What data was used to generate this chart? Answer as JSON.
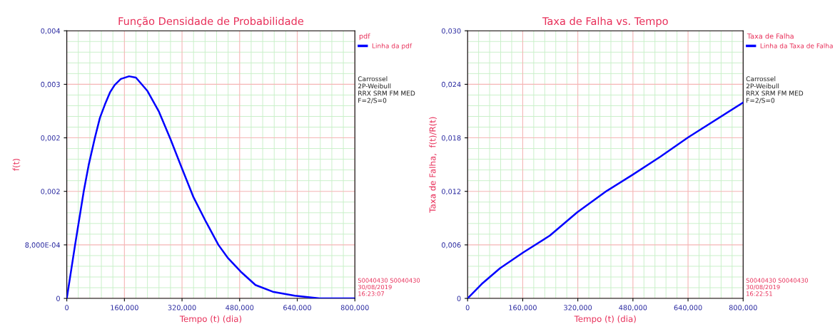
{
  "chart_data": [
    {
      "type": "line",
      "title": "Função Densidade de Probabilidade",
      "xlabel": "Tempo (t) (dia)",
      "ylabel": "f(t)",
      "legend_title": "pdf",
      "legend": "right",
      "grid": true,
      "marker": "none",
      "line_style": "solid",
      "xlim": [
        0,
        800
      ],
      "xticks": [
        {
          "value": 0,
          "label": "0"
        },
        {
          "value": 160,
          "label": "160,000"
        },
        {
          "value": 320,
          "label": "320,000"
        },
        {
          "value": 480,
          "label": "480,000"
        },
        {
          "value": 640,
          "label": "640,000"
        },
        {
          "value": 800,
          "label": "800,000"
        }
      ],
      "ylim": [
        0,
        0.004
      ],
      "yticks": [
        {
          "value": 0,
          "label": "0"
        },
        {
          "value": 0.0008,
          "label": "8,000E-04"
        },
        {
          "value": 0.0016,
          "label": "0,002"
        },
        {
          "value": 0.0024,
          "label": "0,002"
        },
        {
          "value": 0.0032,
          "label": "0,003"
        },
        {
          "value": 0.004,
          "label": "0,004"
        }
      ],
      "x": [
        0,
        23,
        47,
        61,
        78,
        92,
        106,
        120,
        133,
        150,
        173,
        192,
        224,
        256,
        288,
        320,
        352,
        387,
        421,
        448,
        483,
        524,
        572,
        633,
        702,
        800
      ],
      "series": [
        {
          "name": "Linha da pdf",
          "color": "#0000ff",
          "values": [
            0,
            0.0008,
            0.0016,
            0.002,
            0.0024,
            0.0027,
            0.0029,
            0.00308,
            0.00319,
            0.00328,
            0.00332,
            0.0033,
            0.0031,
            0.00279,
            0.00238,
            0.00194,
            0.00151,
            0.00114,
            0.0008,
            0.0006,
            0.0004,
            0.0002,
            0.0001,
            4e-05,
            0,
            0
          ]
        }
      ],
      "annotations": [
        "Carrossel\n2P-Weibull\nRRX SRM FM MED\nF=2/S=0",
        "S0040430 S0040430\n30/08/2019\n16:23:07"
      ]
    },
    {
      "type": "line",
      "title": "Taxa de Falha vs. Tempo",
      "xlabel": "Tempo (t) (dia)",
      "ylabel": "Taxa de Falha,  f(t)/R(t)",
      "legend_title": "Taxa de Falha",
      "legend": "right",
      "grid": true,
      "marker": "none",
      "line_style": "solid",
      "xlim": [
        0,
        800
      ],
      "xticks": [
        {
          "value": 0,
          "label": "0"
        },
        {
          "value": 160,
          "label": "160,000"
        },
        {
          "value": 320,
          "label": "320,000"
        },
        {
          "value": 480,
          "label": "480,000"
        },
        {
          "value": 640,
          "label": "640,000"
        },
        {
          "value": 800,
          "label": "800,000"
        }
      ],
      "ylim": [
        0,
        0.03
      ],
      "yticks": [
        {
          "value": 0,
          "label": "0"
        },
        {
          "value": 0.006,
          "label": "0,006"
        },
        {
          "value": 0.012,
          "label": "0,012"
        },
        {
          "value": 0.018,
          "label": "0,018"
        },
        {
          "value": 0.024,
          "label": "0,024"
        },
        {
          "value": 0.03,
          "label": "0,030"
        }
      ],
      "x": [
        0,
        41,
        94,
        160,
        239,
        318,
        404,
        480,
        559,
        640,
        800
      ],
      "series": [
        {
          "name": "Linha da Taxa de Falha",
          "color": "#0000ff",
          "values": [
            0,
            0.00162,
            0.00338,
            0.00511,
            0.00705,
            0.00964,
            0.01205,
            0.01388,
            0.01587,
            0.01805,
            0.02196
          ]
        }
      ],
      "annotations": [
        "Carrossel\n2P-Weibull\nRRX SRM FM MED\nF=2/S=0",
        "S0040430 S0040430\n30/08/2019\n16:22:51"
      ]
    }
  ]
}
